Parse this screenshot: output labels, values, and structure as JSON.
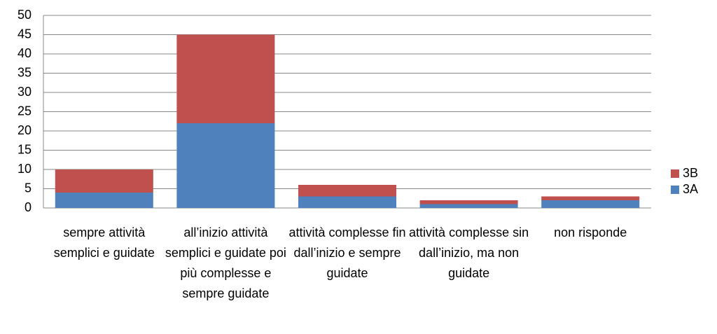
{
  "chart_data": {
    "type": "stacked_bar",
    "categories": [
      "sempre attività semplici e guidate",
      "all’inizio attività semplici e guidate poi più complesse e sempre guidate",
      "attività complesse fin dall’inizio e sempre guidate",
      "attività complesse sin dall’inizio, ma non guidate",
      "non risponde"
    ],
    "series": [
      {
        "name": "3A",
        "color": "#4f81bd",
        "values": [
          4,
          22,
          3,
          1,
          2
        ]
      },
      {
        "name": "3B",
        "color": "#c0504d",
        "values": [
          6,
          23,
          3,
          1,
          1
        ]
      }
    ],
    "ylim": [
      0,
      50
    ],
    "yticks": [
      0,
      5,
      10,
      15,
      20,
      25,
      30,
      35,
      40,
      45,
      50
    ],
    "grid": true,
    "legend": "right"
  }
}
